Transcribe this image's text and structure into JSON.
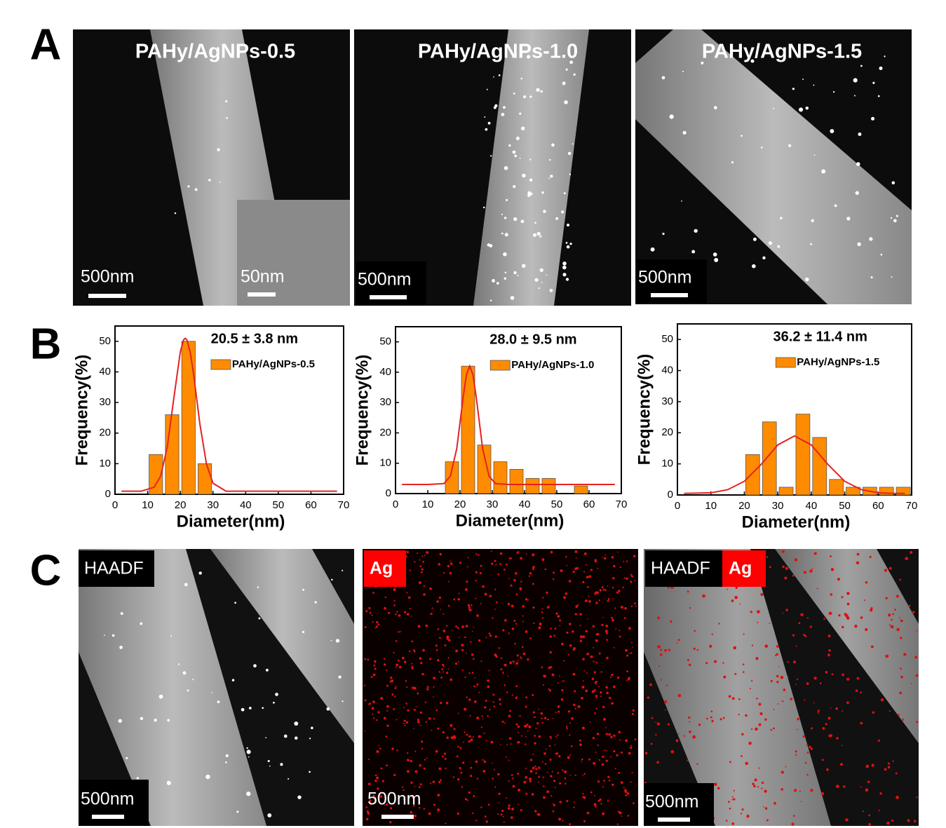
{
  "panels": {
    "a": "A",
    "b": "B",
    "c": "C"
  },
  "panel_a": {
    "titles": [
      "PAHy/AgNPs-0.5",
      "PAHy/AgNPs-1.0",
      "PAHy/AgNPs-1.5"
    ],
    "scale_labels": [
      "500nm",
      "500nm",
      "500nm"
    ],
    "inset_scale_label": "50nm"
  },
  "panel_c": {
    "labels": [
      "HAADF",
      "Ag",
      "HAADF",
      "Ag"
    ],
    "scale_labels": [
      "500nm",
      "500nm",
      "500nm"
    ]
  },
  "chart_data": [
    {
      "type": "histogram",
      "annotation": "20.5 ± 3.8 nm",
      "xlabel": "Diameter(nm)",
      "ylabel": "Frequency(%)",
      "bins": [
        10,
        15,
        20,
        25,
        30
      ],
      "series": [
        {
          "name": "PAHy/AgNPs-0.5",
          "color": "#ff8c00",
          "values": [
            13,
            26,
            50,
            10
          ]
        }
      ],
      "fit": {
        "color": "#e82020",
        "x": [
          2,
          8,
          12,
          14,
          16,
          18,
          20,
          21,
          21.5,
          22,
          23,
          24,
          26,
          28,
          30,
          34,
          40,
          50,
          68
        ],
        "values": [
          1,
          1,
          2.3,
          6,
          15.5,
          31.3,
          46.6,
          50.5,
          51,
          50.5,
          46.6,
          39.8,
          22.9,
          9.9,
          3.6,
          1,
          1,
          1,
          1
        ]
      },
      "xlim": [
        0,
        70
      ],
      "ylim": [
        0,
        55
      ],
      "xticks": [
        0,
        10,
        20,
        30,
        40,
        50,
        60,
        70
      ],
      "yticks": [
        0,
        10,
        20,
        30,
        40,
        50
      ]
    },
    {
      "type": "histogram",
      "annotation": "28.0 ± 9.5 nm",
      "xlabel": "Diameter(nm)",
      "ylabel": "Frequency(%)",
      "bins": [
        15,
        20,
        25,
        30,
        35,
        40,
        45,
        50,
        55,
        60
      ],
      "series": [
        {
          "name": "PAHy/AgNPs-1.0",
          "color": "#ff8c00",
          "values": [
            10.5,
            42,
            16,
            10.5,
            8,
            5,
            5,
            0,
            2.5
          ]
        }
      ],
      "fit": {
        "color": "#e82020",
        "x": [
          2,
          10,
          15,
          17,
          19,
          21,
          22,
          23,
          24,
          25,
          27,
          29,
          31,
          35,
          50,
          68
        ],
        "values": [
          3,
          3,
          3.3,
          5.7,
          14.9,
          32,
          39.2,
          42,
          39.2,
          32,
          14.9,
          5.7,
          3.3,
          3,
          3,
          3
        ]
      },
      "xlim": [
        0,
        70
      ],
      "ylim": [
        0,
        55
      ],
      "xticks": [
        0,
        10,
        20,
        30,
        40,
        50,
        60,
        70
      ],
      "yticks": [
        0,
        10,
        20,
        30,
        40,
        50
      ]
    },
    {
      "type": "histogram",
      "annotation": "36.2 ± 11.4 nm",
      "xlabel": "Diameter(nm)",
      "ylabel": "Frequency(%)",
      "bins": [
        20,
        25,
        30,
        35,
        40,
        45,
        50,
        55,
        60,
        65,
        70
      ],
      "series": [
        {
          "name": "PAHy/AgNPs-1.5",
          "color": "#ff8c00",
          "values": [
            13,
            23.5,
            2.5,
            26,
            18.5,
            5,
            2.5,
            2.5,
            2.5,
            2.5
          ]
        }
      ],
      "fit": {
        "color": "#e82020",
        "x": [
          2,
          10,
          15,
          20,
          25,
          30,
          35,
          40,
          45,
          50,
          55,
          60,
          65,
          68
        ],
        "values": [
          0.5,
          0.7,
          1.7,
          4.4,
          9.8,
          16.1,
          19,
          16.1,
          9.8,
          4.4,
          1.7,
          0.7,
          0.5,
          0.5
        ]
      },
      "xlim": [
        0,
        70
      ],
      "ylim": [
        0,
        55
      ],
      "xticks": [
        0,
        10,
        20,
        30,
        40,
        50,
        60,
        70
      ],
      "yticks": [
        0,
        10,
        20,
        30,
        40,
        50
      ]
    }
  ]
}
